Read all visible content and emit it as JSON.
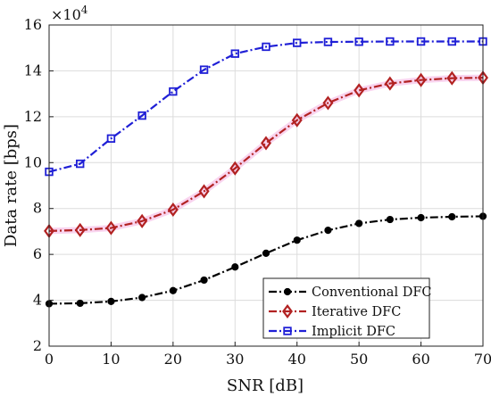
{
  "chart_data": {
    "type": "line",
    "xlabel": "SNR [dB]",
    "ylabel": "Data rate [bps]",
    "y_multiplier": "×10",
    "y_multiplier_exponent": "4",
    "xlim": [
      0,
      70
    ],
    "ylim": [
      2,
      16
    ],
    "xticks": [
      0,
      10,
      20,
      30,
      40,
      50,
      60,
      70
    ],
    "yticks": [
      2,
      4,
      6,
      8,
      10,
      12,
      14,
      16
    ],
    "xtick_labels": [
      "0",
      "10",
      "20",
      "30",
      "40",
      "50",
      "60",
      "70"
    ],
    "ytick_labels": [
      "2",
      "4",
      "6",
      "8",
      "10",
      "12",
      "14",
      "16"
    ],
    "grid": true,
    "legend_position": "bottom-right",
    "x": [
      0,
      5,
      10,
      15,
      20,
      25,
      30,
      35,
      40,
      45,
      50,
      55,
      60,
      65,
      70
    ],
    "series": [
      {
        "name": "Conventional DFC",
        "color": "#000000",
        "marker": "circle",
        "line_style": "dash-dot",
        "values": [
          3.85,
          3.87,
          3.95,
          4.12,
          4.42,
          4.88,
          5.45,
          6.05,
          6.62,
          7.05,
          7.35,
          7.52,
          7.6,
          7.64,
          7.66
        ]
      },
      {
        "name": "Iterative DFC",
        "color": "#b22222",
        "marker": "diamond",
        "line_style": "dash-dot",
        "values": [
          7.02,
          7.06,
          7.15,
          7.45,
          7.95,
          8.75,
          9.75,
          10.85,
          11.85,
          12.6,
          13.15,
          13.45,
          13.6,
          13.68,
          13.7
        ]
      },
      {
        "name": "Implicit DFC",
        "color": "#1f1fd6",
        "marker": "square",
        "line_style": "dash-dot",
        "values": [
          9.6,
          9.95,
          11.05,
          12.05,
          13.1,
          14.05,
          14.75,
          15.05,
          15.22,
          15.26,
          15.27,
          15.28,
          15.28,
          15.28,
          15.28
        ]
      }
    ]
  }
}
